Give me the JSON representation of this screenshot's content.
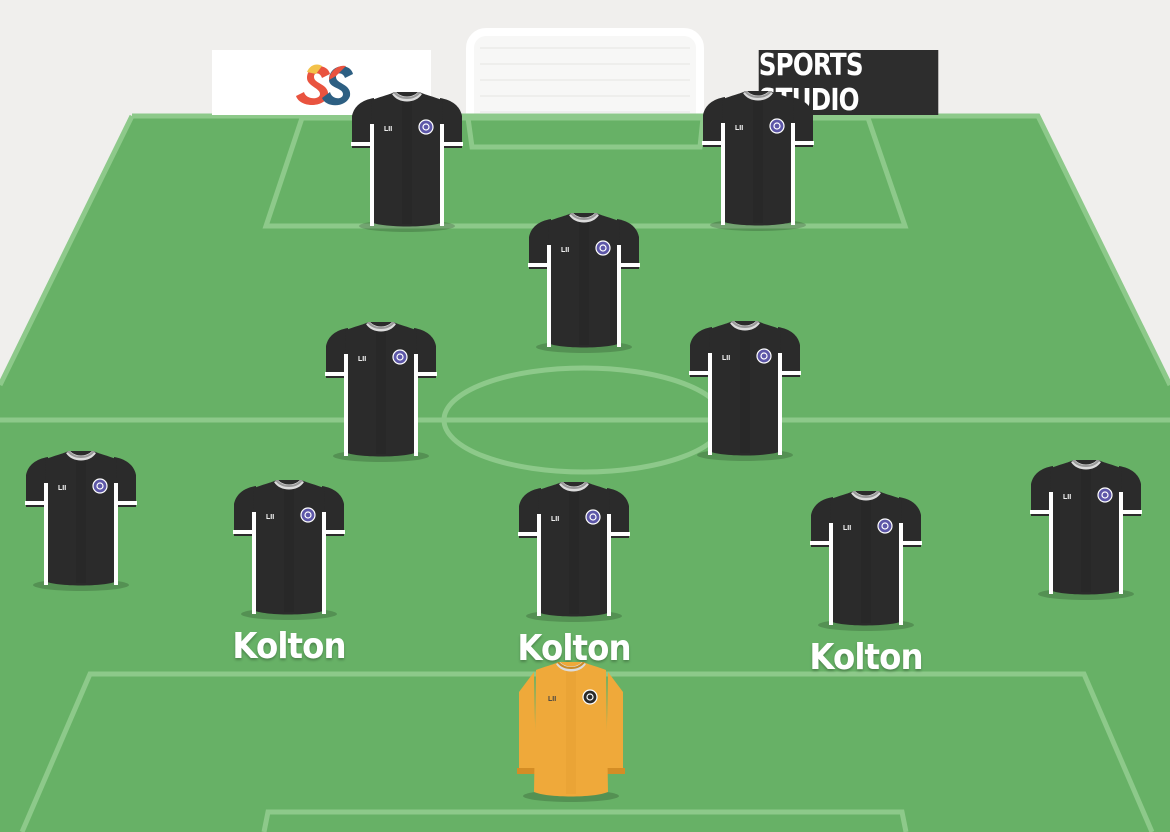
{
  "brand": {
    "logo_icon": "ss-logo-icon",
    "title": "SPORTS STUDIO"
  },
  "colors": {
    "pitch": "#67b166",
    "pitch_lines": "#8dc98a",
    "outfield_shirt": "#2b2b2b",
    "goalkeeper_shirt": "#efa93a",
    "background": "#f0efed"
  },
  "shirt": {
    "sponsor_text": "LII",
    "crest_icon": "crest-icon"
  },
  "players": [
    {
      "id": "striker-left",
      "name": ""
    },
    {
      "id": "striker-right",
      "name": ""
    },
    {
      "id": "attacking-mid",
      "name": ""
    },
    {
      "id": "central-mid-left",
      "name": ""
    },
    {
      "id": "central-mid-right",
      "name": ""
    },
    {
      "id": "left-back",
      "name": ""
    },
    {
      "id": "centre-back-left",
      "name": "Kolton"
    },
    {
      "id": "centre-back-middle",
      "name": "Kolton"
    },
    {
      "id": "centre-back-right",
      "name": "Kolton"
    },
    {
      "id": "right-back",
      "name": ""
    },
    {
      "id": "goalkeeper",
      "name": ""
    }
  ]
}
